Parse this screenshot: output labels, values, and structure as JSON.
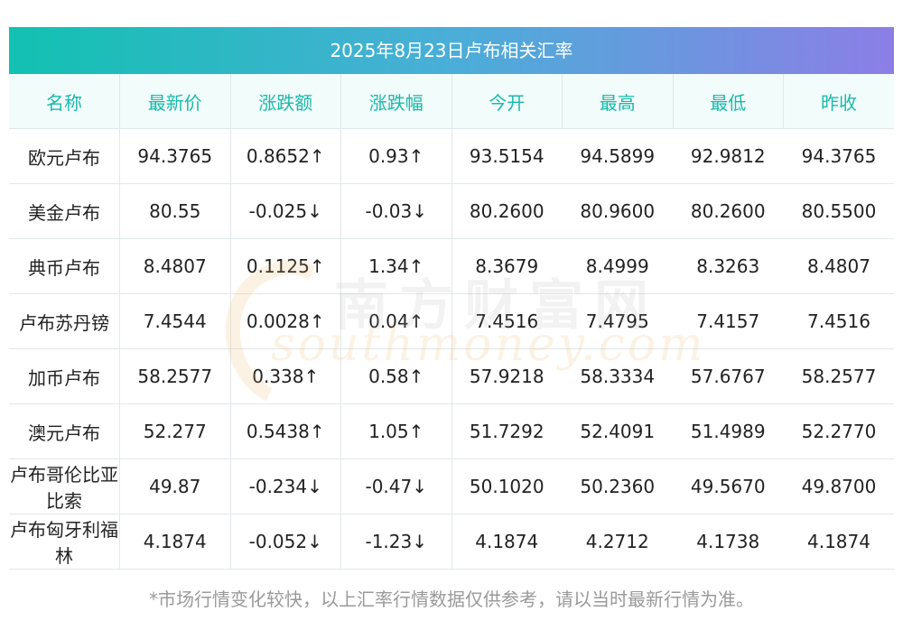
{
  "title": "2025年8月23日卢布相关汇率",
  "headers": [
    "名称",
    "最新价",
    "涨跌额",
    "涨跌幅",
    "今开",
    "最高",
    "最低",
    "昨收"
  ],
  "rows": [
    {
      "name": "欧元卢布",
      "last": "94.3765",
      "change": "0.8652↑",
      "pct": "0.93↑",
      "open": "93.5154",
      "high": "94.5899",
      "low": "92.9812",
      "prev": "94.3765",
      "dir": "up"
    },
    {
      "name": "美金卢布",
      "last": "80.55",
      "change": "-0.025↓",
      "pct": "-0.03↓",
      "open": "80.2600",
      "high": "80.9600",
      "low": "80.2600",
      "prev": "80.5500",
      "dir": "down"
    },
    {
      "name": "典币卢布",
      "last": "8.4807",
      "change": "0.1125↑",
      "pct": "1.34↑",
      "open": "8.3679",
      "high": "8.4999",
      "low": "8.3263",
      "prev": "8.4807",
      "dir": "up"
    },
    {
      "name": "卢布苏丹镑",
      "last": "7.4544",
      "change": "0.0028↑",
      "pct": "0.04↑",
      "open": "7.4516",
      "high": "7.4795",
      "low": "7.4157",
      "prev": "7.4516",
      "dir": "up"
    },
    {
      "name": "加币卢布",
      "last": "58.2577",
      "change": "0.338↑",
      "pct": "0.58↑",
      "open": "57.9218",
      "high": "58.3334",
      "low": "57.6767",
      "prev": "58.2577",
      "dir": "up"
    },
    {
      "name": "澳元卢布",
      "last": "52.277",
      "change": "0.5438↑",
      "pct": "1.05↑",
      "open": "51.7292",
      "high": "52.4091",
      "low": "51.4989",
      "prev": "52.2770",
      "dir": "up"
    },
    {
      "name": "卢布哥伦比亚比索",
      "last": "49.87",
      "change": "-0.234↓",
      "pct": "-0.47↓",
      "open": "50.1020",
      "high": "50.2360",
      "low": "49.5670",
      "prev": "49.8700",
      "dir": "down"
    },
    {
      "name": "卢布匈牙利福林",
      "last": "4.1874",
      "change": "-0.052↓",
      "pct": "-1.23↓",
      "open": "4.1874",
      "high": "4.2712",
      "low": "4.1738",
      "prev": "4.1874",
      "dir": "down"
    }
  ],
  "footnote": "*市场行情变化较快，以上汇率行情数据仅供参考，请以当时最新行情为准。",
  "watermark": {
    "cn": "南方财富网",
    "en": "southmoney.com"
  },
  "colors": {
    "up": "#ee1111",
    "down": "#1e8a1e",
    "header_text": "#1ab9ab",
    "title_gradient_start": "#12c1b1",
    "title_gradient_end": "#8c7ee6"
  }
}
